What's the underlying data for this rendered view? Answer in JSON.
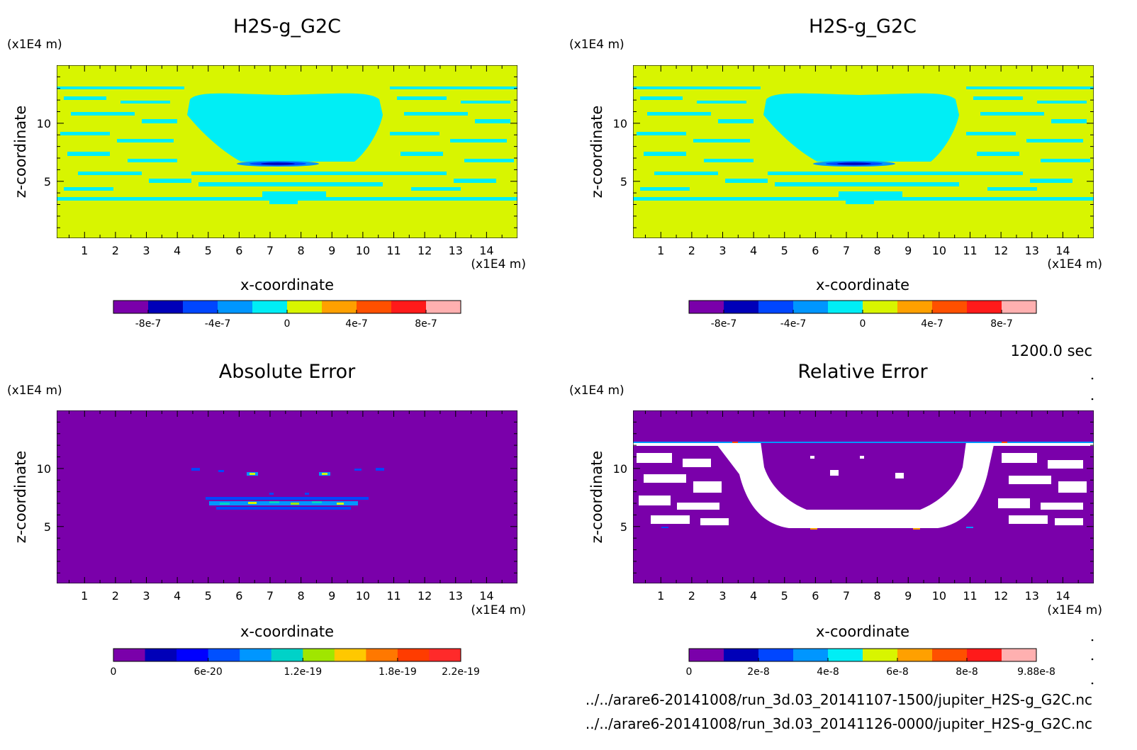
{
  "colors": {
    "background_field": "#d8f500",
    "feature_field": "#00eef5",
    "error_background": "#7a00aa",
    "white_patch": "#ffffff"
  },
  "chart_data": [
    {
      "type": "heatmap",
      "title": "H2S-g_G2C",
      "xlabel": "x-coordinate",
      "ylabel": "z-coordinate",
      "x_unit": "(x1E4 m)",
      "y_unit": "(x1E4 m)",
      "x_ticks": [
        "1",
        "2",
        "3",
        "4",
        "5",
        "6",
        "7",
        "8",
        "9",
        "10",
        "11",
        "12",
        "13",
        "14"
      ],
      "y_ticks": [
        "5",
        "10"
      ],
      "xlim": [
        0.1,
        15.0
      ],
      "ylim": [
        0.1,
        15.0
      ],
      "colorbar": {
        "colors": [
          "#7a00aa",
          "#0000b8",
          "#0046ff",
          "#0096ff",
          "#00eef5",
          "#d8f500",
          "#ffa000",
          "#ff5000",
          "#ff1a1a",
          "#ffb0b0"
        ],
        "ticks": [
          "-8e-7",
          "-4e-7",
          "0",
          "4e-7",
          "8e-7"
        ]
      }
    },
    {
      "type": "heatmap",
      "title": "H2S-g_G2C",
      "xlabel": "x-coordinate",
      "ylabel": "z-coordinate",
      "x_unit": "(x1E4 m)",
      "y_unit": "(x1E4 m)",
      "x_ticks": [
        "1",
        "2",
        "3",
        "4",
        "5",
        "6",
        "7",
        "8",
        "9",
        "10",
        "11",
        "12",
        "13",
        "14"
      ],
      "y_ticks": [
        "5",
        "10"
      ],
      "xlim": [
        0.1,
        15.0
      ],
      "ylim": [
        0.1,
        15.0
      ],
      "colorbar": {
        "colors": [
          "#7a00aa",
          "#0000b8",
          "#0046ff",
          "#0096ff",
          "#00eef5",
          "#d8f500",
          "#ffa000",
          "#ff5000",
          "#ff1a1a",
          "#ffb0b0"
        ],
        "ticks": [
          "-8e-7",
          "-4e-7",
          "0",
          "4e-7",
          "8e-7"
        ]
      }
    },
    {
      "type": "heatmap",
      "title": "Absolute Error",
      "xlabel": "x-coordinate",
      "ylabel": "z-coordinate",
      "x_unit": "(x1E4 m)",
      "y_unit": "(x1E4 m)",
      "x_ticks": [
        "1",
        "2",
        "3",
        "4",
        "5",
        "6",
        "7",
        "8",
        "9",
        "10",
        "11",
        "12",
        "13",
        "14"
      ],
      "y_ticks": [
        "5",
        "10"
      ],
      "xlim": [
        0.1,
        15.0
      ],
      "ylim": [
        0.1,
        15.0
      ],
      "colorbar": {
        "colors": [
          "#7a00aa",
          "#0000b8",
          "#0000ff",
          "#0050ff",
          "#0096ff",
          "#00d2c8",
          "#a0e600",
          "#ffc800",
          "#ff7800",
          "#ff3c00",
          "#ff2a2a"
        ],
        "ticks": [
          "0",
          "6e-20",
          "1.2e-19",
          "1.8e-19",
          "2.2e-19"
        ]
      }
    },
    {
      "type": "heatmap",
      "title": "Relative Error",
      "xlabel": "x-coordinate",
      "ylabel": "z-coordinate",
      "x_unit": "(x1E4 m)",
      "y_unit": "(x1E4 m)",
      "x_ticks": [
        "1",
        "2",
        "3",
        "4",
        "5",
        "6",
        "7",
        "8",
        "9",
        "10",
        "11",
        "12",
        "13",
        "14"
      ],
      "y_ticks": [
        "5",
        "10"
      ],
      "xlim": [
        0.1,
        15.0
      ],
      "ylim": [
        0.1,
        15.0
      ],
      "colorbar": {
        "colors": [
          "#7a00aa",
          "#0000b8",
          "#0046ff",
          "#0096ff",
          "#00eef5",
          "#d8f500",
          "#ffa000",
          "#ff5000",
          "#ff1a1a",
          "#ffb0b0"
        ],
        "ticks": [
          "0",
          "2e-8",
          "4e-8",
          "6e-8",
          "8e-8",
          "9.88e-8"
        ]
      }
    }
  ],
  "time_label": "1200.0 sec",
  "footer_lines": [
    "../../arare6-20141008/run_3d.03_20141107-1500/jupiter_H2S-g_G2C.nc",
    "../../arare6-20141008/run_3d.03_20141126-0000/jupiter_H2S-g_G2C.nc"
  ]
}
